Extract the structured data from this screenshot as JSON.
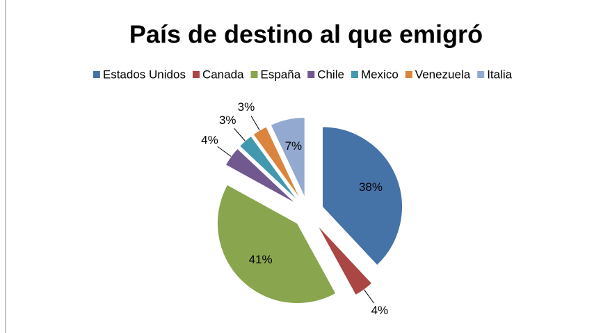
{
  "chart_data": {
    "type": "pie",
    "title": "País de destino al que emigró",
    "categories": [
      "Estados Unidos",
      "Canada",
      "España",
      "Chile",
      "Mexico",
      "Venezuela",
      "Italia"
    ],
    "values": [
      38,
      4,
      41,
      4,
      3,
      3,
      7
    ],
    "value_labels": [
      "38%",
      "4%",
      "41%",
      "4%",
      "3%",
      "3%",
      "7%"
    ],
    "colors": [
      "#4572a7",
      "#aa4643",
      "#89a54e",
      "#71588f",
      "#4198af",
      "#db843d",
      "#93a9cf"
    ],
    "legend": "top"
  }
}
